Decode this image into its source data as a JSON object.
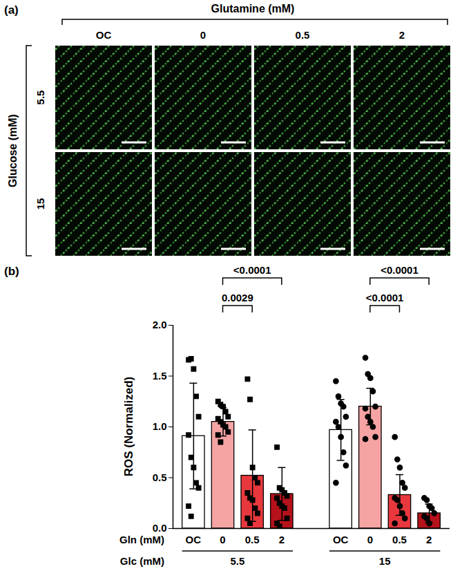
{
  "panel_a": {
    "panel": "(a)",
    "column_title": "Glutamine (mM)",
    "columns": [
      "OC",
      "0",
      "0.5",
      "2"
    ],
    "row_title": "Glucose (mM)",
    "rows": [
      "5.5",
      "15"
    ]
  },
  "chart_data": {
    "type": "bar",
    "panel": "(b)",
    "y_label": "ROS (Normalized)",
    "ylim": [
      0,
      2
    ],
    "yticks": [
      {
        "value": 0,
        "label": "0.0"
      },
      {
        "value": 0.5,
        "label": "0.5"
      },
      {
        "value": 1,
        "label": "1.0"
      },
      {
        "value": 1.5,
        "label": "1.5"
      },
      {
        "value": 2,
        "label": "2.0"
      }
    ],
    "x_row_labels": [
      "Gln (mM)",
      "Glc (mM)"
    ],
    "groups": [
      {
        "name": "5.5",
        "marker": "square",
        "categories": [
          "OC",
          "0",
          "0.5",
          "2"
        ],
        "values": [
          0.91,
          1.05,
          0.52,
          0.34
        ],
        "errors": [
          0.52,
          0.14,
          0.45,
          0.26
        ],
        "colors": [
          "#ffffff",
          "#f5a3a3",
          "#e8383d",
          "#b5121b"
        ],
        "points": [
          [
            1.66,
            1.67,
            1.57,
            1.3,
            1.1,
            0.92,
            0.7,
            0.6,
            0.45,
            0.4,
            0.22,
            0.12
          ],
          [
            1.25,
            1.22,
            1.2,
            1.15,
            1.1,
            1.08,
            1.05,
            1.02,
            1.0,
            0.95,
            0.92,
            0.85
          ],
          [
            1.47,
            1.27,
            0.6,
            0.5,
            0.45,
            0.35,
            0.3,
            0.28,
            0.2,
            0.15,
            0.1,
            0.05
          ],
          [
            0.8,
            0.4,
            0.38,
            0.35,
            0.32,
            0.3,
            0.25,
            0.22,
            0.2,
            0.1,
            0.05,
            0.02
          ]
        ]
      },
      {
        "name": "15",
        "marker": "circle",
        "categories": [
          "OC",
          "0",
          "0.5",
          "2"
        ],
        "values": [
          0.97,
          1.2,
          0.33,
          0.15
        ],
        "errors": [
          0.3,
          0.18,
          0.2,
          0.09
        ],
        "colors": [
          "#ffffff",
          "#f5a3a3",
          "#e8383d",
          "#b5121b"
        ],
        "points": [
          [
            1.45,
            1.3,
            1.23,
            1.2,
            1.1,
            1.05,
            1.0,
            0.9,
            0.75,
            0.62,
            0.45
          ],
          [
            1.68,
            1.52,
            1.48,
            1.35,
            1.2,
            1.18,
            1.1,
            1.05,
            1.0,
            0.9,
            0.88
          ],
          [
            0.9,
            0.68,
            0.6,
            0.45,
            0.4,
            0.3,
            0.28,
            0.22,
            0.15,
            0.1,
            0.05
          ],
          [
            0.3,
            0.28,
            0.22,
            0.2,
            0.15,
            0.12,
            0.1,
            0.05
          ]
        ]
      }
    ],
    "comparisons": [
      {
        "group": "5.5",
        "from": "0",
        "to": "0.5",
        "label": "0.0029"
      },
      {
        "group": "5.5",
        "from": "0",
        "to": "2",
        "label": "<0.0001"
      },
      {
        "group": "15",
        "from": "0",
        "to": "0.5",
        "label": "<0.0001"
      },
      {
        "group": "15",
        "from": "0",
        "to": "2",
        "label": "<0.0001"
      }
    ]
  }
}
